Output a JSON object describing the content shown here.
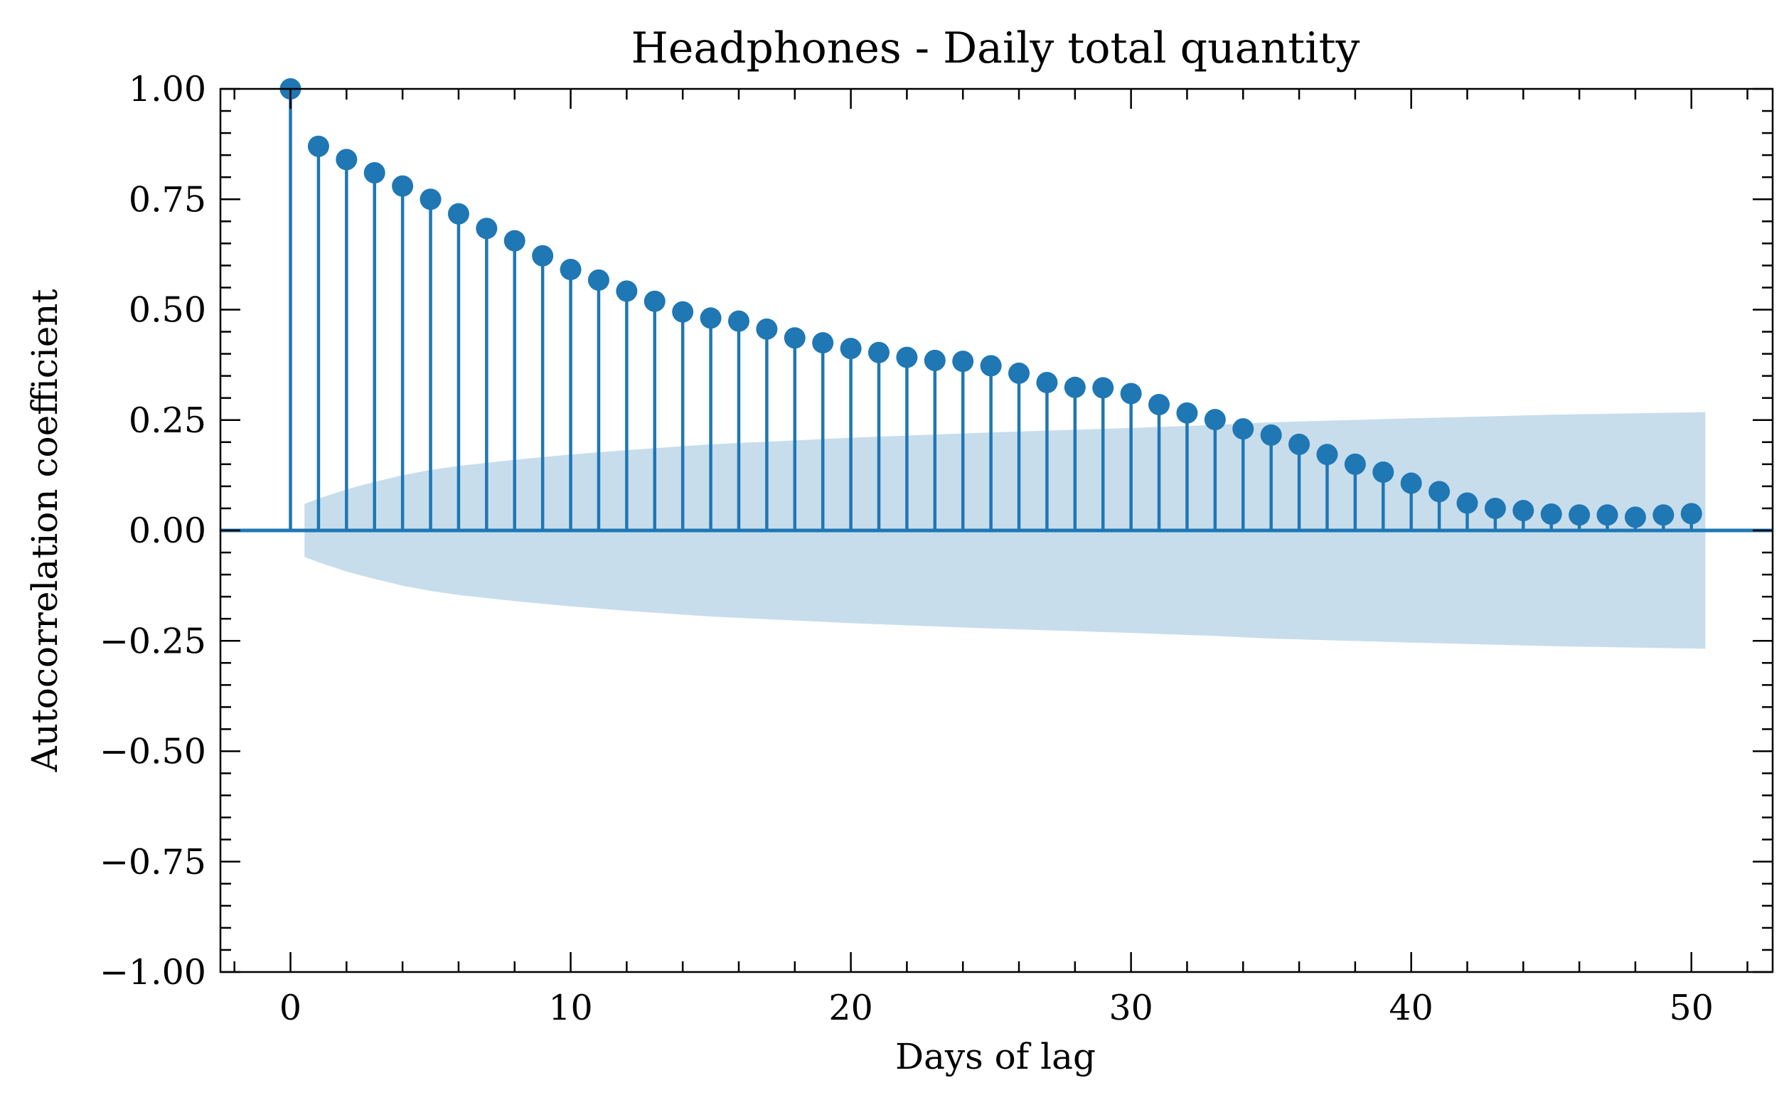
{
  "chart_data": {
    "type": "stem",
    "title": "Headphones - Daily total quantity",
    "xlabel": "Days of lag",
    "ylabel": "Autocorrelation coefficient",
    "xlim": [
      -2.5,
      52.9
    ],
    "ylim": [
      -1.0,
      1.0
    ],
    "x_ticks": [
      0,
      10,
      20,
      30,
      40,
      50
    ],
    "x_tick_labels": [
      "0",
      "10",
      "20",
      "30",
      "40",
      "50"
    ],
    "x_minor_step": 2,
    "y_ticks": [
      -1.0,
      -0.75,
      -0.5,
      -0.25,
      0.0,
      0.25,
      0.5,
      0.75,
      1.0
    ],
    "y_tick_labels": [
      "−1.00",
      "−0.75",
      "−0.50",
      "−0.25",
      "0.00",
      "0.25",
      "0.50",
      "0.75",
      "1.00"
    ],
    "y_minor_step": 0.05,
    "grid": false,
    "colors": {
      "series": "#1f77b4",
      "confidence_band": "#1f77b4"
    },
    "series": [
      {
        "x": [
          0,
          1,
          2,
          3,
          4,
          5,
          6,
          7,
          8,
          9,
          10,
          11,
          12,
          13,
          14,
          15,
          16,
          17,
          18,
          19,
          20,
          21,
          22,
          23,
          24,
          25,
          26,
          27,
          28,
          29,
          30,
          31,
          32,
          33,
          34,
          35,
          36,
          37,
          38,
          39,
          40,
          41,
          42,
          43,
          44,
          45,
          46,
          47,
          48,
          49,
          50
        ],
        "values": [
          1.0,
          0.87,
          0.84,
          0.81,
          0.78,
          0.75,
          0.717,
          0.684,
          0.656,
          0.622,
          0.591,
          0.567,
          0.542,
          0.519,
          0.495,
          0.481,
          0.474,
          0.456,
          0.436,
          0.425,
          0.412,
          0.403,
          0.392,
          0.385,
          0.383,
          0.373,
          0.356,
          0.335,
          0.324,
          0.323,
          0.31,
          0.285,
          0.266,
          0.251,
          0.23,
          0.216,
          0.195,
          0.172,
          0.15,
          0.132,
          0.107,
          0.088,
          0.062,
          0.05,
          0.045,
          0.037,
          0.035,
          0.035,
          0.03,
          0.035,
          0.038
        ]
      }
    ],
    "confidence_band": {
      "x": [
        0.5,
        1,
        2,
        3,
        4,
        5,
        6,
        8,
        10,
        12,
        15,
        20,
        25,
        30,
        33,
        35,
        40,
        45,
        50.5
      ],
      "half_width": [
        0.06,
        0.072,
        0.093,
        0.11,
        0.125,
        0.137,
        0.146,
        0.16,
        0.172,
        0.182,
        0.195,
        0.21,
        0.222,
        0.232,
        0.239,
        0.245,
        0.254,
        0.262,
        0.268
      ]
    }
  }
}
